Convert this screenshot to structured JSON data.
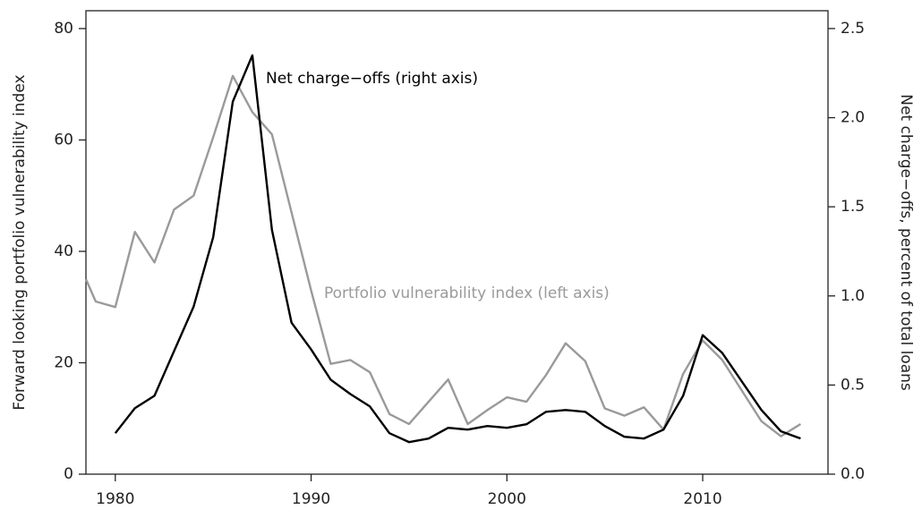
{
  "chart_data": {
    "type": "line",
    "y_label": "Forward looking portfolio vulnerability index",
    "y2_label": "Net charge−offs, percent of total loans",
    "xlim": [
      1978.5,
      2016.4
    ],
    "xticks": [
      1980,
      1990,
      2000,
      2010
    ],
    "ylim": [
      0,
      83.2
    ],
    "yticks": [
      0,
      20,
      40,
      60,
      80
    ],
    "y2lim": [
      0,
      2.6
    ],
    "y2ticks": [
      {
        "value": 0,
        "label": "0.0"
      },
      0.5,
      {
        "value": 1,
        "label": "1.0"
      },
      1.5,
      {
        "value": 2,
        "label": "2.0"
      },
      2.5
    ],
    "grid": false,
    "series": [
      {
        "name": "Portfolio vulnerability index (left axis)",
        "color": "#9a9a9a",
        "x": [
          1978.5,
          1979,
          1980,
          1981,
          1982,
          1983,
          1984,
          1985,
          1986,
          1987,
          1988,
          1989,
          1990,
          1991,
          1992,
          1993,
          1994,
          1995,
          1996,
          1997,
          1998,
          1999,
          2000,
          2001,
          2002,
          2003,
          2004,
          2005,
          2006,
          2007,
          2008,
          2009,
          2010,
          2011,
          2012,
          2013,
          2014,
          2015
        ],
        "values": [
          35,
          31,
          30,
          43.5,
          38,
          47.5,
          50,
          60.5,
          71.5,
          65,
          61,
          47,
          33,
          19.8,
          20.5,
          18.3,
          10.8,
          9,
          13,
          17,
          9,
          11.5,
          13.8,
          13,
          17.8,
          23.5,
          20.3,
          11.8,
          10.5,
          12,
          8,
          18,
          24,
          20.5,
          15,
          9.5,
          6.8,
          9
        ]
      },
      {
        "name": "Net charge−offs (right axis)",
        "color": "#000000",
        "axis": "y2",
        "x": [
          1980,
          1981,
          1982,
          1983,
          1984,
          1985,
          1986,
          1987,
          1988,
          1989,
          1990,
          1991,
          1992,
          1993,
          1994,
          1995,
          1996,
          1997,
          1998,
          1999,
          2000,
          2001,
          2002,
          2003,
          2004,
          2005,
          2006,
          2007,
          2008,
          2009,
          2010,
          2011,
          2012,
          2013,
          2014,
          2015
        ],
        "values": [
          0.23,
          0.37,
          0.44,
          0.69,
          0.94,
          1.33,
          2.09,
          2.35,
          1.37,
          0.85,
          0.7,
          0.53,
          0.45,
          0.38,
          0.23,
          0.18,
          0.2,
          0.26,
          0.25,
          0.27,
          0.26,
          0.28,
          0.35,
          0.36,
          0.35,
          0.27,
          0.21,
          0.2,
          0.25,
          0.44,
          0.78,
          0.68,
          0.52,
          0.36,
          0.24,
          0.2
        ]
      }
    ]
  }
}
